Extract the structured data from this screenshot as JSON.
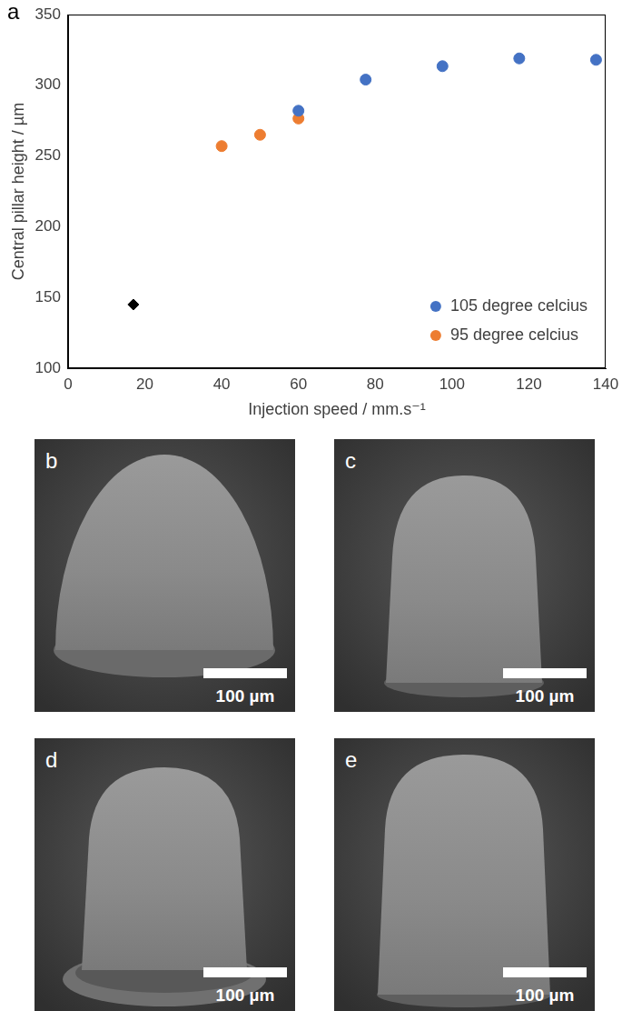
{
  "chart_data": {
    "type": "scatter",
    "title": "a",
    "x_label": "Injection speed / mm.s⁻¹",
    "y_label": "Central pillar height / µm",
    "xlim": [
      0,
      140
    ],
    "xticks": [
      0,
      20,
      40,
      60,
      80,
      100,
      120,
      140
    ],
    "ylim": [
      100,
      350
    ],
    "yticks": [
      100,
      150,
      200,
      250,
      300,
      350
    ],
    "grid": false,
    "legend": "lower right",
    "series": [
      {
        "name": "105 degree celcius",
        "color": "#4472c4",
        "marker": "circle",
        "x": [
          60,
          77.5,
          97.5,
          117.5,
          137.5
        ],
        "values": [
          282,
          304,
          313.5,
          319,
          318
        ]
      },
      {
        "name": "95 degree celcius",
        "color": "#ed7d31",
        "marker": "circle",
        "x": [
          40,
          50,
          60
        ],
        "values": [
          257,
          265,
          276.5
        ]
      },
      {
        "color": "#000000",
        "marker": "diamond",
        "x": [
          17
        ],
        "values": [
          145
        ]
      }
    ]
  },
  "panels": [
    {
      "label": "b",
      "scale_bar": "100 µm"
    },
    {
      "label": "c",
      "scale_bar": "100 µm"
    },
    {
      "label": "d",
      "scale_bar": "100 µm"
    },
    {
      "label": "e",
      "scale_bar": "100 µm"
    }
  ]
}
